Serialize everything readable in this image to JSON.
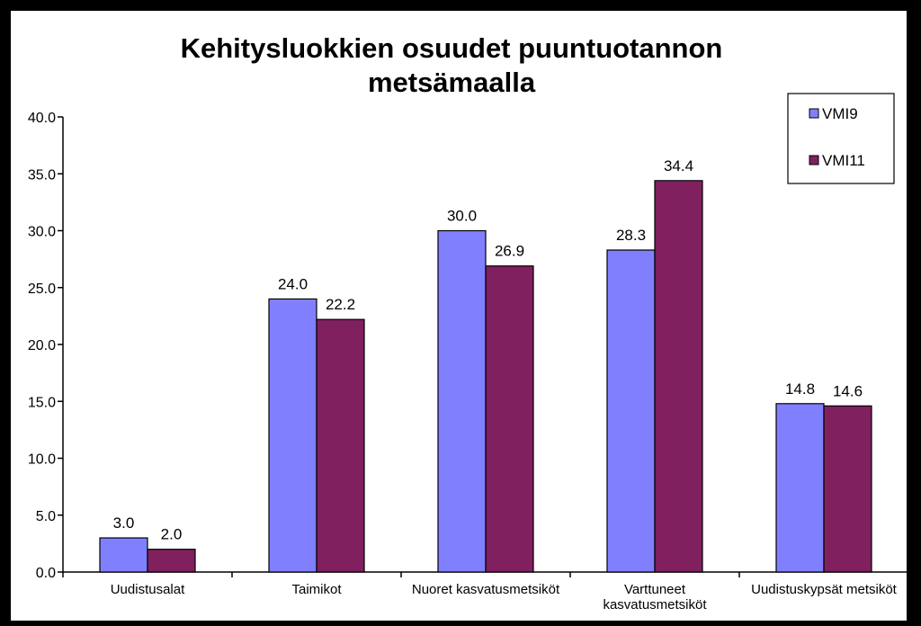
{
  "chart_data": {
    "type": "bar",
    "title": [
      "Kehitysluokkien osuudet puuntuotannon",
      "metsämaalla"
    ],
    "xlabel": "",
    "ylabel": "",
    "ylim": [
      0,
      40
    ],
    "yticks": [
      "0.0",
      "5.0",
      "10.0",
      "15.0",
      "20.0",
      "25.0",
      "30.0",
      "35.0",
      "40.0"
    ],
    "categories": [
      [
        "Uudistusalat"
      ],
      [
        "Taimikot"
      ],
      [
        "Nuoret kasvatusmetsiköt"
      ],
      [
        "Varttuneet",
        "kasvatusmetsiköt"
      ],
      [
        "Uudistuskypsät metsiköt"
      ]
    ],
    "series": [
      {
        "name": "VMI9",
        "color": "#8080ff",
        "values": [
          3.0,
          24.0,
          30.0,
          28.3,
          14.8
        ],
        "labels": [
          "3.0",
          "24.0",
          "30.0",
          "28.3",
          "14.8"
        ]
      },
      {
        "name": "VMI11",
        "color": "#80205f",
        "values": [
          2.0,
          22.2,
          26.9,
          34.4,
          14.6
        ],
        "labels": [
          "2.0",
          "22.2",
          "26.9",
          "34.4",
          "14.6"
        ]
      }
    ],
    "grid": false,
    "legend_position": "top-right"
  }
}
